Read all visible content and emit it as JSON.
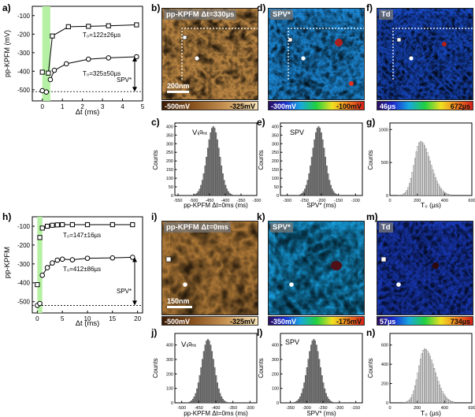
{
  "panel_letters": {
    "a": "a)",
    "b": "b)",
    "c": "c)",
    "d": "d)",
    "e": "e)",
    "f": "f)",
    "g": "g)",
    "h": "h)",
    "i": "i)",
    "j": "j)",
    "k": "k)",
    "l": "l)",
    "m": "m)",
    "n": "n)"
  },
  "top": {
    "a": {
      "ylabel": "pp-KPFM (mV)",
      "xlabel": "Δt (ms)",
      "yticks": [
        "-100",
        "-200",
        "-300",
        "-400",
        "-500"
      ],
      "xticks": [
        "0",
        "1",
        "2",
        "3",
        "4",
        "5"
      ],
      "fit1_label": "T₀=122±26µs",
      "fit2_label": "T₀=325±50µs",
      "spv_label": "SPV*"
    },
    "b": {
      "title": "pp-KPFM Δt=330µs",
      "scale": "200nm",
      "cbar_min": "-500mV",
      "cbar_max": "-325mV"
    },
    "d": {
      "title": "SPV*",
      "cbar_min": "-300mV",
      "cbar_max": "-100mV"
    },
    "f": {
      "title": "Td",
      "cbar_min": "46µs",
      "cbar_max": "672µs"
    },
    "c": {
      "title": "Vₗᵢᵍₕₜ",
      "ylabel": "Counts",
      "xlabel": "pp-KPFM Δt=0ms (ms)",
      "xticks": [
        "-550",
        "-500",
        "-450",
        "-400",
        "-350",
        "-300"
      ],
      "yticks": [
        "400",
        "350",
        "300",
        "250",
        "200",
        "150",
        "100",
        "50",
        "0"
      ]
    },
    "e": {
      "title": "SPV",
      "ylabel": "Counts",
      "xlabel": "SPV* (ms)",
      "xticks": [
        "-300",
        "-250",
        "-200",
        "-150",
        "-100"
      ],
      "yticks": [
        "400",
        "350",
        "300",
        "250",
        "200",
        "150",
        "100",
        "50",
        "0"
      ]
    },
    "g": {
      "ylabel": "Counts",
      "xlabel": "T₀ (µs)",
      "xticks": [
        "0",
        "200",
        "400",
        "600"
      ],
      "yticks": [
        "1000",
        "500",
        "0"
      ]
    }
  },
  "bottom": {
    "h": {
      "ylabel": "pp-KPFM",
      "xlabel": "Δt (ms)",
      "yticks": [
        "-100",
        "-200",
        "-300",
        "-400",
        "-500"
      ],
      "xticks": [
        "0",
        "5",
        "10",
        "15",
        "20"
      ],
      "fit1_label": "T₀=147±16µs",
      "fit2_label": "T₀=412±86µs",
      "spv_label": "SPV*"
    },
    "i": {
      "title": "pp-KPFM Δt=0ms",
      "scale": "150nm",
      "cbar_min": "-500mV",
      "cbar_max": "-325mV"
    },
    "k": {
      "title": "SPV*",
      "cbar_min": "-350mV",
      "cbar_max": "-175mV"
    },
    "m": {
      "title": "Td",
      "cbar_min": "57µs",
      "cbar_max": "734µs"
    },
    "j": {
      "title": "Vₗᵢᵍₕₜ",
      "ylabel": "Counts",
      "xlabel": "pp-KPFM Δt=0ms (ms)",
      "xticks": [
        "-500",
        "-450",
        "-400",
        "-350",
        "-300"
      ],
      "yticks": [
        "400",
        "300",
        "200",
        "100",
        "0"
      ]
    },
    "l": {
      "title": "SPV",
      "ylabel": "Counts",
      "xlabel": "SPV* (ms)",
      "xticks": [
        "-350",
        "-300",
        "-250",
        "-200",
        "-150"
      ],
      "yticks": [
        "400",
        "300",
        "200",
        "100",
        "0"
      ]
    },
    "n": {
      "ylabel": "Counts",
      "xlabel": "T₀ (µs)",
      "xticks": [
        "0",
        "200",
        "400",
        "600"
      ],
      "yticks": [
        "600",
        "400",
        "200",
        "0"
      ]
    }
  },
  "chart_data": [
    {
      "id": "a",
      "type": "scatter",
      "xlim": [
        -0.5,
        5
      ],
      "ylim": [
        -560,
        -50
      ],
      "series": [
        {
          "marker": "square",
          "x": [
            0,
            0.3,
            0.5,
            1.3,
            2.3,
            3.3,
            4.7
          ],
          "y": [
            -405,
            -410,
            -210,
            -160,
            -158,
            -155,
            -150
          ]
        },
        {
          "marker": "circle",
          "x": [
            0,
            0.2,
            0.4,
            0.6,
            1.2,
            2.3,
            3.3,
            4.7
          ],
          "y": [
            -505,
            -512,
            -445,
            -395,
            -360,
            -335,
            -328,
            -322
          ]
        }
      ],
      "baseline": -510,
      "highlight_x": [
        0,
        0.4
      ]
    },
    {
      "id": "h",
      "type": "scatter",
      "xlim": [
        -1,
        21
      ],
      "ylim": [
        -560,
        -50
      ],
      "series": [
        {
          "marker": "square",
          "x": [
            0,
            0.5,
            1,
            2,
            3,
            4,
            5,
            7,
            10,
            15,
            19
          ],
          "y": [
            -410,
            -160,
            -110,
            -100,
            -95,
            -93,
            -92,
            -92,
            -92,
            -92,
            -92
          ]
        },
        {
          "marker": "circle",
          "x": [
            0,
            0.5,
            1,
            2,
            3,
            4,
            5,
            7,
            10,
            15,
            19
          ],
          "y": [
            -520,
            -510,
            -360,
            -320,
            -295,
            -280,
            -275,
            -278,
            -270,
            -268,
            -265
          ]
        }
      ],
      "baseline": -520,
      "highlight_x": [
        0,
        1
      ]
    },
    {
      "id": "c",
      "type": "bar",
      "center": -440,
      "peak": 400,
      "xlim": [
        -560,
        -300
      ],
      "ylim": [
        0,
        420
      ]
    },
    {
      "id": "e",
      "type": "bar",
      "center": -210,
      "peak": 400,
      "xlim": [
        -320,
        -80
      ],
      "ylim": [
        0,
        420
      ]
    },
    {
      "id": "g",
      "type": "bar",
      "center": 220,
      "peak": 820,
      "xlim": [
        0,
        600
      ],
      "ylim": [
        0,
        1100
      ]
    },
    {
      "id": "j",
      "type": "bar",
      "center": -425,
      "peak": 440,
      "xlim": [
        -520,
        -280
      ],
      "ylim": [
        0,
        480
      ]
    },
    {
      "id": "l",
      "type": "bar",
      "center": -280,
      "peak": 440,
      "xlim": [
        -380,
        -130
      ],
      "ylim": [
        0,
        480
      ]
    },
    {
      "id": "n",
      "type": "bar",
      "center": 250,
      "peak": 560,
      "xlim": [
        0,
        600
      ],
      "ylim": [
        0,
        720
      ]
    }
  ],
  "colors": {
    "highlight": "#b6f0a4",
    "bar_dark": "#7b7b7b",
    "bar_light": "#e8e8e8"
  }
}
